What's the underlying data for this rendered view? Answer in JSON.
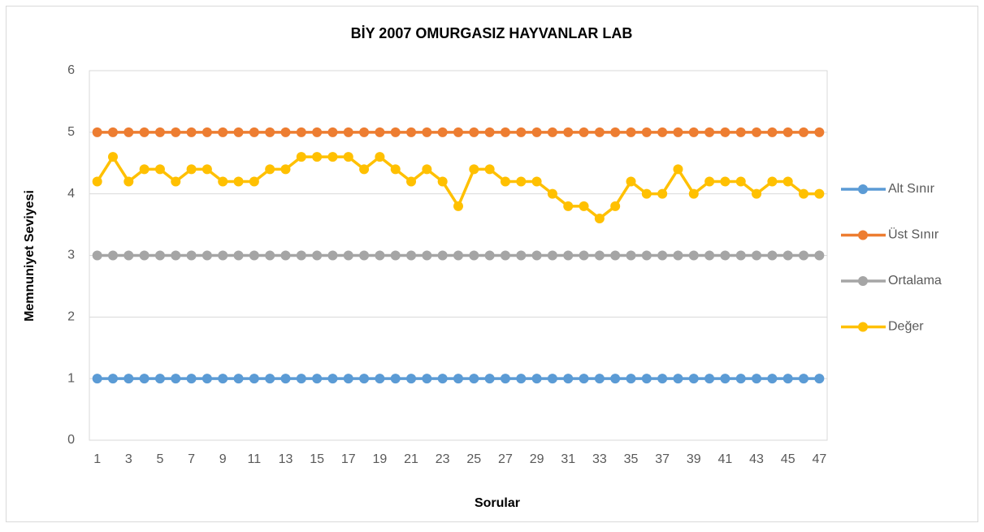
{
  "chart_data": {
    "type": "line",
    "title": "BİY 2007 OMURGASIZ HAYVANLAR LAB",
    "x_label": "Sorular",
    "y_label": "Memnuniyet Seviyesi",
    "categories": [
      1,
      null,
      3,
      null,
      5,
      null,
      7,
      null,
      9,
      null,
      11,
      null,
      13,
      null,
      15,
      null,
      17,
      null,
      19,
      null,
      21,
      null,
      23,
      null,
      25,
      null,
      27,
      null,
      29,
      null,
      31,
      null,
      33,
      null,
      35,
      null,
      37,
      null,
      39,
      null,
      41,
      null,
      43,
      null,
      45,
      null,
      47
    ],
    "series": [
      {
        "name": "Alt Sınır",
        "color": "#5b9bd5",
        "values": [
          1,
          1,
          1,
          1,
          1,
          1,
          1,
          1,
          1,
          1,
          1,
          1,
          1,
          1,
          1,
          1,
          1,
          1,
          1,
          1,
          1,
          1,
          1,
          1,
          1,
          1,
          1,
          1,
          1,
          1,
          1,
          1,
          1,
          1,
          1,
          1,
          1,
          1,
          1,
          1,
          1,
          1,
          1,
          1,
          1,
          1,
          1
        ]
      },
      {
        "name": "Üst Sınır",
        "color": "#ed7d31",
        "values": [
          5,
          5,
          5,
          5,
          5,
          5,
          5,
          5,
          5,
          5,
          5,
          5,
          5,
          5,
          5,
          5,
          5,
          5,
          5,
          5,
          5,
          5,
          5,
          5,
          5,
          5,
          5,
          5,
          5,
          5,
          5,
          5,
          5,
          5,
          5,
          5,
          5,
          5,
          5,
          5,
          5,
          5,
          5,
          5,
          5,
          5,
          5
        ]
      },
      {
        "name": "Ortalama",
        "color": "#a5a5a5",
        "values": [
          3,
          3,
          3,
          3,
          3,
          3,
          3,
          3,
          3,
          3,
          3,
          3,
          3,
          3,
          3,
          3,
          3,
          3,
          3,
          3,
          3,
          3,
          3,
          3,
          3,
          3,
          3,
          3,
          3,
          3,
          3,
          3,
          3,
          3,
          3,
          3,
          3,
          3,
          3,
          3,
          3,
          3,
          3,
          3,
          3,
          3,
          3
        ]
      },
      {
        "name": "Değer",
        "color": "#ffc000",
        "values": [
          4.2,
          4.6,
          4.2,
          4.4,
          4.4,
          4.2,
          4.4,
          4.4,
          4.2,
          4.2,
          4.2,
          4.4,
          4.4,
          4.6,
          4.6,
          4.6,
          4.6,
          4.4,
          4.6,
          4.4,
          4.2,
          4.4,
          4.2,
          3.8,
          4.4,
          4.4,
          4.2,
          4.2,
          4.2,
          4.0,
          3.8,
          3.8,
          3.6,
          3.8,
          4.2,
          4.0,
          4.0,
          4.4,
          4.0,
          4.2,
          4.2,
          4.2,
          4.0,
          4.2,
          4.2,
          4.0,
          4.0
        ]
      }
    ],
    "ylim": [
      0,
      6
    ],
    "yticks": [
      0,
      1,
      2,
      3,
      4,
      5,
      6
    ],
    "grid": true,
    "legend": "right"
  }
}
